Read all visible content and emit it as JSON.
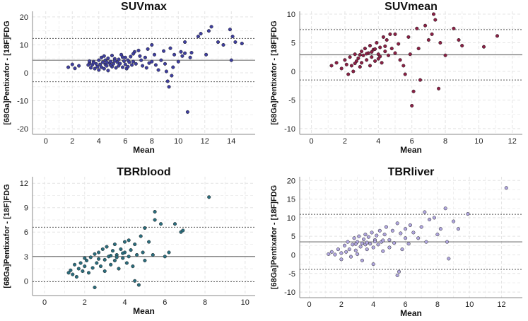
{
  "chart_data": [
    {
      "type": "scatter",
      "title": "SUVmax",
      "xlabel": "Mean",
      "ylabel": "[68Ga]Pentixafor - [18F]FDG",
      "xlim": [
        -1,
        15.8
      ],
      "ylim": [
        -22,
        22
      ],
      "xticks": [
        0,
        2,
        4,
        6,
        8,
        10,
        12,
        14
      ],
      "yticks": [
        -20,
        -10,
        0,
        10,
        20
      ],
      "bias": 4.5,
      "loa_upper": 12.3,
      "loa_lower": -3.2,
      "point_color": "#3f3fa0",
      "points": [
        [
          1.7,
          2
        ],
        [
          2,
          3
        ],
        [
          2.2,
          1.6
        ],
        [
          2.5,
          2.5
        ],
        [
          3.3,
          3.5
        ],
        [
          3.4,
          1.8
        ],
        [
          3.5,
          2.8
        ],
        [
          3.6,
          4
        ],
        [
          3.7,
          1.5
        ],
        [
          3.8,
          3.2
        ],
        [
          3.9,
          2.2
        ],
        [
          4,
          4.5
        ],
        [
          4,
          1
        ],
        [
          4.1,
          3
        ],
        [
          4.2,
          5.5
        ],
        [
          4.2,
          2
        ],
        [
          4.3,
          3.8
        ],
        [
          4.4,
          1.5
        ],
        [
          4.4,
          6
        ],
        [
          4.5,
          3
        ],
        [
          4.5,
          4.5
        ],
        [
          4.6,
          2.5
        ],
        [
          4.7,
          5.2
        ],
        [
          4.7,
          0.8
        ],
        [
          4.8,
          3.5
        ],
        [
          4.9,
          4
        ],
        [
          5,
          2.2
        ],
        [
          5,
          6.2
        ],
        [
          5.1,
          3.2
        ],
        [
          5.2,
          5
        ],
        [
          5.3,
          1.8
        ],
        [
          5.4,
          3.8
        ],
        [
          5.5,
          4.8
        ],
        [
          5.5,
          2.5
        ],
        [
          5.6,
          3.3
        ],
        [
          5.7,
          6.5
        ],
        [
          5.8,
          2
        ],
        [
          5.9,
          4.2
        ],
        [
          6,
          5.5
        ],
        [
          6,
          3
        ],
        [
          6.1,
          1.5
        ],
        [
          6.2,
          4.5
        ],
        [
          6.3,
          3.8
        ],
        [
          6.4,
          5.8
        ],
        [
          6.5,
          2.8
        ],
        [
          6.6,
          4
        ],
        [
          6.7,
          7.5
        ],
        [
          6.8,
          3.2
        ],
        [
          7,
          8
        ],
        [
          7.2,
          4.5
        ],
        [
          7.3,
          2.5
        ],
        [
          7.5,
          5.5
        ],
        [
          7.6,
          1.8
        ],
        [
          7.8,
          3.5
        ],
        [
          8,
          10
        ],
        [
          8,
          4
        ],
        [
          8.2,
          6.5
        ],
        [
          8.3,
          2.8
        ],
        [
          8.5,
          1
        ],
        [
          8.7,
          4.5
        ],
        [
          9,
          3.2
        ],
        [
          9.1,
          0.5
        ],
        [
          9.2,
          -3
        ],
        [
          9.3,
          -5
        ],
        [
          9.5,
          -1
        ],
        [
          9.6,
          2
        ],
        [
          9.7,
          6.5
        ],
        [
          10,
          4
        ],
        [
          10.2,
          7.5
        ],
        [
          10.3,
          6
        ],
        [
          10.5,
          7
        ],
        [
          10.5,
          11
        ],
        [
          10.7,
          -14
        ],
        [
          10.9,
          5.5
        ],
        [
          11,
          7.2
        ],
        [
          11.5,
          13
        ],
        [
          11.7,
          14
        ],
        [
          12.1,
          6.5
        ],
        [
          12.3,
          15
        ],
        [
          12.5,
          16.5
        ],
        [
          13,
          11
        ],
        [
          13.4,
          10
        ],
        [
          13.9,
          15.5
        ],
        [
          14,
          4.5
        ],
        [
          14.1,
          13
        ],
        [
          14.3,
          11
        ],
        [
          14.8,
          10.5
        ],
        [
          3.2,
          2.8
        ],
        [
          3.3,
          4.2
        ],
        [
          4.6,
          3.8
        ],
        [
          5.2,
          4.3
        ],
        [
          5.8,
          5.6
        ],
        [
          6.6,
          6.8
        ],
        [
          7.1,
          6
        ],
        [
          7.7,
          8.5
        ],
        [
          8.9,
          7.8
        ],
        [
          9.4,
          8.8
        ],
        [
          6.2,
          2.2
        ],
        [
          4.9,
          2.7
        ],
        [
          3.6,
          3.6
        ]
      ]
    },
    {
      "type": "scatter",
      "title": "SUVmean",
      "xlabel": "Mean",
      "ylabel": "[68Ga]Pentixafor - [18F]FDG",
      "xlim": [
        -0.7,
        12.6
      ],
      "ylim": [
        -11,
        10.5
      ],
      "xticks": [
        0,
        2,
        4,
        6,
        8,
        10,
        12
      ],
      "yticks": [
        -10,
        -5,
        0,
        5,
        10
      ],
      "bias": 2.9,
      "loa_upper": 7.3,
      "loa_lower": -1.5,
      "point_color": "#8b2045",
      "points": [
        [
          1.2,
          1
        ],
        [
          1.5,
          1.5
        ],
        [
          1.8,
          0.5
        ],
        [
          2,
          2
        ],
        [
          2.1,
          1.2
        ],
        [
          2.2,
          -0.5
        ],
        [
          2.3,
          2.5
        ],
        [
          2.4,
          1
        ],
        [
          2.5,
          0
        ],
        [
          2.6,
          3
        ],
        [
          2.7,
          1.8
        ],
        [
          2.8,
          2.3
        ],
        [
          2.9,
          0.8
        ],
        [
          3,
          3.5
        ],
        [
          3,
          1.5
        ],
        [
          3.1,
          2.8
        ],
        [
          3.2,
          4
        ],
        [
          3.3,
          2
        ],
        [
          3.4,
          3.2
        ],
        [
          3.5,
          1
        ],
        [
          3.5,
          4.5
        ],
        [
          3.6,
          2.5
        ],
        [
          3.7,
          3.8
        ],
        [
          3.8,
          1.8
        ],
        [
          3.9,
          5
        ],
        [
          4,
          3
        ],
        [
          4,
          2.2
        ],
        [
          4.1,
          4.2
        ],
        [
          4.2,
          1.5
        ],
        [
          4.3,
          6
        ],
        [
          4.4,
          3.5
        ],
        [
          4.5,
          5.5
        ],
        [
          4.6,
          2.8
        ],
        [
          4.7,
          6.5
        ],
        [
          4.8,
          4
        ],
        [
          5,
          3.2
        ],
        [
          5,
          6.5
        ],
        [
          5.2,
          4.8
        ],
        [
          5.3,
          2
        ],
        [
          5.5,
          1
        ],
        [
          5.6,
          -0.5
        ],
        [
          5.8,
          6
        ],
        [
          5.9,
          3
        ],
        [
          6,
          -6
        ],
        [
          6.1,
          -3.5
        ],
        [
          6.3,
          7.5
        ],
        [
          6.4,
          4
        ],
        [
          6.5,
          -1.5
        ],
        [
          6.8,
          8
        ],
        [
          7,
          5.5
        ],
        [
          7.2,
          6.5
        ],
        [
          7.3,
          10
        ],
        [
          7.4,
          9
        ],
        [
          7.6,
          -3
        ],
        [
          7.7,
          5
        ],
        [
          8,
          2.8
        ],
        [
          8.5,
          7.5
        ],
        [
          8.8,
          5.5
        ],
        [
          9,
          4.5
        ],
        [
          10.3,
          4.3
        ],
        [
          11.1,
          6.2
        ],
        [
          2.6,
          1.4
        ],
        [
          3.3,
          3.1
        ],
        [
          3.6,
          3.4
        ],
        [
          4.1,
          2.6
        ],
        [
          2.9,
          2.9
        ],
        [
          3.8,
          3.9
        ],
        [
          4.4,
          4.4
        ]
      ]
    },
    {
      "type": "scatter",
      "title": "TBRblood",
      "xlabel": "Mean",
      "ylabel": "[68Ga]Pentixafor - [18F]FDG",
      "xlim": [
        -0.6,
        10.5
      ],
      "ylim": [
        -1.8,
        12.8
      ],
      "xticks": [
        0,
        2,
        4,
        6,
        8,
        10
      ],
      "yticks": [
        0,
        3,
        6,
        9,
        12
      ],
      "bias": 3,
      "loa_upper": 6.6,
      "loa_lower": -0.1,
      "point_color": "#2b6d7d",
      "points": [
        [
          1.2,
          1
        ],
        [
          1.3,
          1.3
        ],
        [
          1.4,
          0.8
        ],
        [
          1.5,
          2
        ],
        [
          1.6,
          0.5
        ],
        [
          1.7,
          1.5
        ],
        [
          1.8,
          2.2
        ],
        [
          1.9,
          1.2
        ],
        [
          2,
          2.8
        ],
        [
          2,
          1.8
        ],
        [
          2.1,
          2.5
        ],
        [
          2.2,
          1
        ],
        [
          2.3,
          2.9
        ],
        [
          2.4,
          1.6
        ],
        [
          2.5,
          3.3
        ],
        [
          2.5,
          -0.8
        ],
        [
          2.6,
          2.2
        ],
        [
          2.7,
          3.5
        ],
        [
          2.8,
          1.8
        ],
        [
          2.9,
          3.9
        ],
        [
          3,
          2.6
        ],
        [
          3,
          1.2
        ],
        [
          3.1,
          4.2
        ],
        [
          3.2,
          3
        ],
        [
          3.3,
          2
        ],
        [
          3.4,
          3.7
        ],
        [
          3.5,
          2.5
        ],
        [
          3.5,
          4.5
        ],
        [
          3.6,
          3.2
        ],
        [
          3.7,
          1.5
        ],
        [
          3.8,
          3.9
        ],
        [
          3.9,
          2.8
        ],
        [
          4,
          4.8
        ],
        [
          4,
          3.5
        ],
        [
          4.1,
          2.2
        ],
        [
          4.2,
          5
        ],
        [
          4.3,
          3.8
        ],
        [
          4.4,
          1.8
        ],
        [
          4.5,
          4.5
        ],
        [
          4.5,
          0
        ],
        [
          4.6,
          3.2
        ],
        [
          4.7,
          -0.5
        ],
        [
          4.8,
          5.5
        ],
        [
          4.9,
          3.5
        ],
        [
          5,
          6.5
        ],
        [
          5,
          2.5
        ],
        [
          5.2,
          4.8
        ],
        [
          5.4,
          3.2
        ],
        [
          5.5,
          8.5
        ],
        [
          5.5,
          7.5
        ],
        [
          5.8,
          7
        ],
        [
          6,
          3
        ],
        [
          6.2,
          3.5
        ],
        [
          6.5,
          7
        ],
        [
          6.8,
          6
        ],
        [
          6.9,
          6.2
        ],
        [
          8.2,
          10.3
        ],
        [
          3.3,
          3.1
        ],
        [
          3.6,
          2.9
        ],
        [
          2.7,
          2.7
        ],
        [
          4.2,
          3
        ],
        [
          3.9,
          3.4
        ]
      ]
    },
    {
      "type": "scatter",
      "title": "TBRliver",
      "xlabel": "Mean",
      "ylabel": "[68Ga]Pentixafor - [18F]FDG",
      "xlim": [
        -0.6,
        13.3
      ],
      "ylim": [
        -11.5,
        21
      ],
      "xticks": [
        0,
        2,
        4,
        6,
        8,
        10,
        12
      ],
      "yticks": [
        -10,
        -5,
        0,
        5,
        10,
        15,
        20
      ],
      "bias": 3.5,
      "loa_upper": 10.9,
      "loa_lower": -3.9,
      "point_color": "#b0a6df",
      "points": [
        [
          1.2,
          0.2
        ],
        [
          1.4,
          0.8
        ],
        [
          1.6,
          0.1
        ],
        [
          1.8,
          1.5
        ],
        [
          2,
          0.5
        ],
        [
          2,
          -1.2
        ],
        [
          2.2,
          2.5
        ],
        [
          2.3,
          0.8
        ],
        [
          2.4,
          3.5
        ],
        [
          2.5,
          1.5
        ],
        [
          2.6,
          -0.5
        ],
        [
          2.7,
          2.8
        ],
        [
          2.8,
          4.5
        ],
        [
          2.9,
          1.2
        ],
        [
          3,
          3.5
        ],
        [
          3,
          0.2
        ],
        [
          3.1,
          5
        ],
        [
          3.2,
          2.2
        ],
        [
          3.3,
          -1.5
        ],
        [
          3.4,
          4.2
        ],
        [
          3.5,
          2.8
        ],
        [
          3.5,
          5.5
        ],
        [
          3.6,
          1.5
        ],
        [
          3.7,
          4.8
        ],
        [
          3.8,
          3
        ],
        [
          3.9,
          6
        ],
        [
          4,
          2
        ],
        [
          4,
          -2.5
        ],
        [
          4.1,
          4
        ],
        [
          4.2,
          5.2
        ],
        [
          4.3,
          2.8
        ],
        [
          4.4,
          6.5
        ],
        [
          4.5,
          3.5
        ],
        [
          4.6,
          1
        ],
        [
          4.7,
          5.5
        ],
        [
          4.8,
          7.5
        ],
        [
          5,
          4
        ],
        [
          5,
          2
        ],
        [
          5.2,
          6.5
        ],
        [
          5.3,
          3.2
        ],
        [
          5.5,
          8.5
        ],
        [
          5.5,
          -5.5
        ],
        [
          5.6,
          -4.5
        ],
        [
          5.7,
          5.8
        ],
        [
          5.8,
          1.5
        ],
        [
          6,
          7
        ],
        [
          6,
          4.5
        ],
        [
          6.2,
          3
        ],
        [
          6.3,
          8
        ],
        [
          6.5,
          6
        ],
        [
          6.8,
          4.5
        ],
        [
          7,
          7.5
        ],
        [
          7.2,
          11.5
        ],
        [
          7.3,
          3.5
        ],
        [
          7.5,
          9.5
        ],
        [
          7.8,
          10
        ],
        [
          8,
          5.5
        ],
        [
          8.2,
          7
        ],
        [
          8.5,
          12.5
        ],
        [
          8.6,
          3.5
        ],
        [
          8.7,
          -1
        ],
        [
          9,
          9
        ],
        [
          9.3,
          7
        ],
        [
          9.9,
          11
        ],
        [
          12.3,
          18
        ],
        [
          3.6,
          3.3
        ],
        [
          4.1,
          3.6
        ],
        [
          2.9,
          2.9
        ],
        [
          4.6,
          3.9
        ],
        [
          3.3,
          3.1
        ]
      ]
    }
  ]
}
